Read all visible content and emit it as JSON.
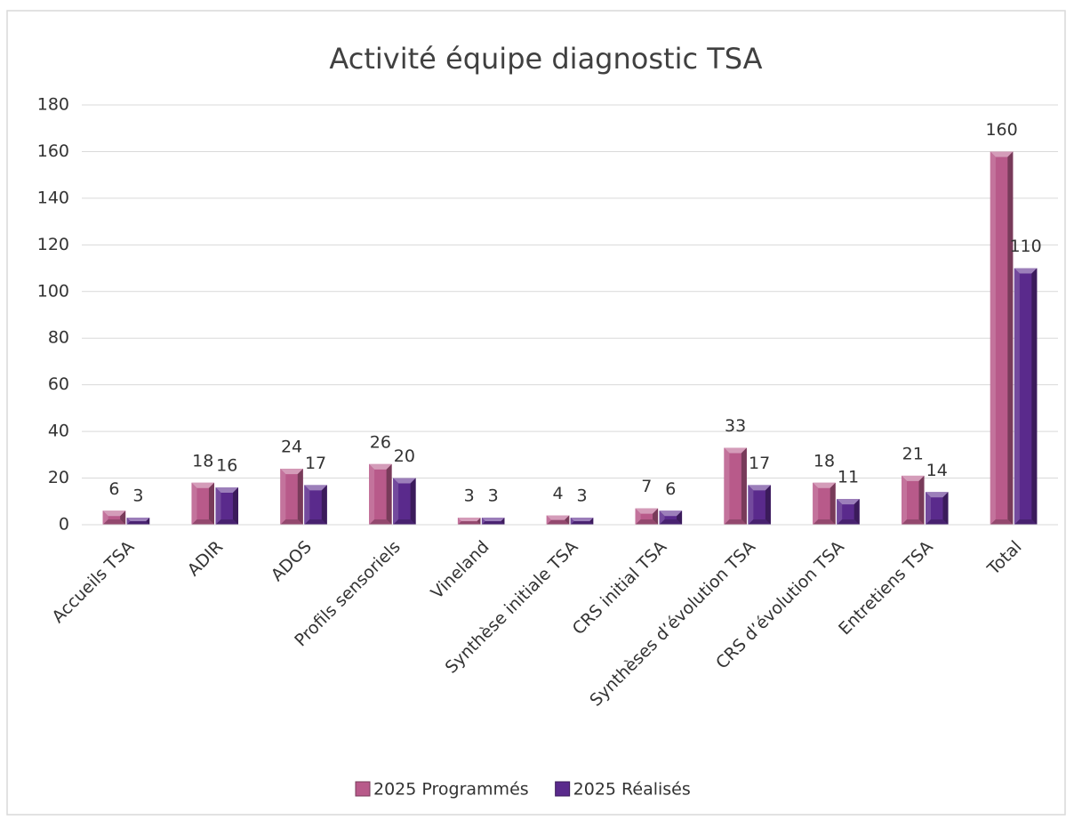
{
  "chart_data": {
    "type": "bar",
    "title": "Activité équipe diagnostic TSA",
    "categories": [
      "Accueils TSA",
      "ADIR",
      "ADOS",
      "Profils sensoriels",
      "Vineland",
      "Synthèse initiale TSA",
      "CRS initial TSA",
      "Synthèses d’évolution TSA",
      "CRS d’évolution TSA",
      "Entretiens TSA",
      "Total"
    ],
    "series": [
      {
        "name": "2025 Programmés",
        "color": "#b85a8a",
        "values": [
          6,
          18,
          24,
          26,
          3,
          4,
          7,
          33,
          18,
          21,
          160
        ]
      },
      {
        "name": "2025 Réalisés",
        "color": "#5a2a8c",
        "values": [
          3,
          16,
          17,
          20,
          3,
          3,
          6,
          17,
          11,
          14,
          110
        ]
      }
    ],
    "ylim": [
      0,
      180
    ],
    "yticks": [
      0,
      20,
      40,
      60,
      80,
      100,
      120,
      140,
      160,
      180
    ],
    "grid": true,
    "legend": "bottom"
  }
}
